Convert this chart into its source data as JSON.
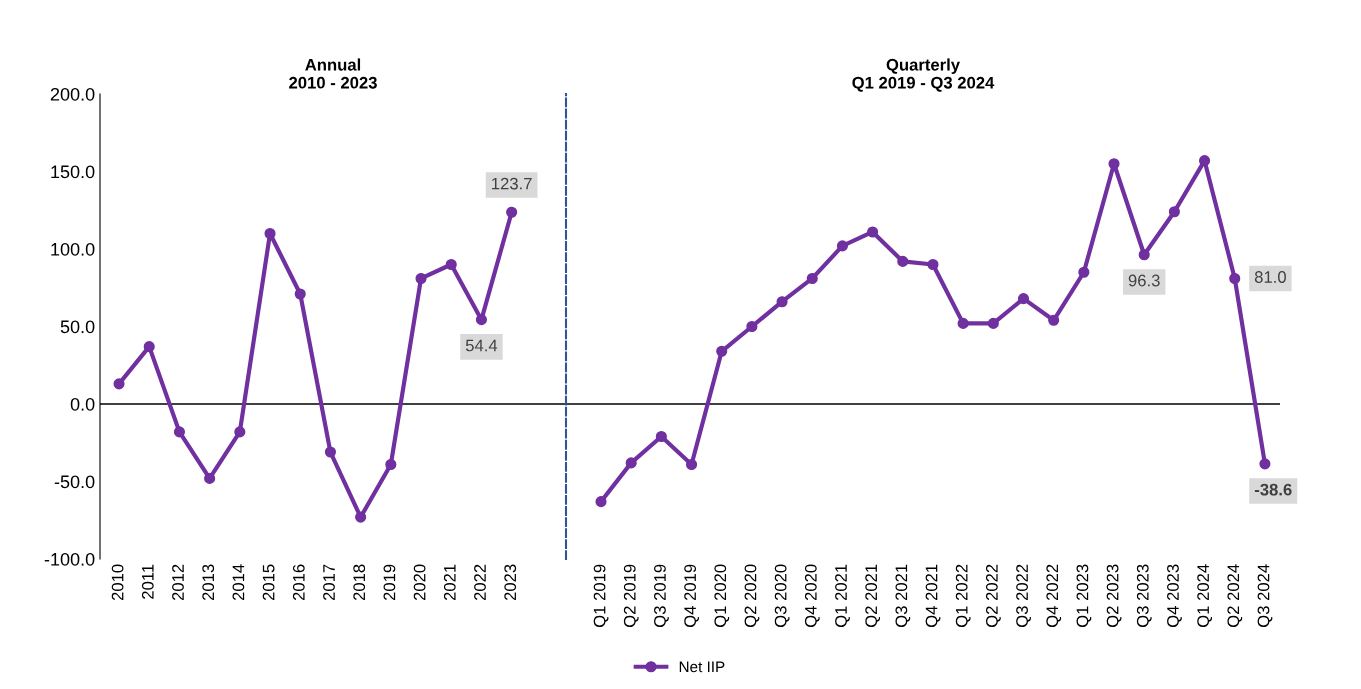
{
  "chart_data": [
    {
      "type": "line",
      "title": "Annual\n2010 - 2023",
      "categories": [
        "2010",
        "2011",
        "2012",
        "2013",
        "2014",
        "2015",
        "2016",
        "2017",
        "2018",
        "2019",
        "2020",
        "2021",
        "2022",
        "2023"
      ],
      "series": [
        {
          "name": "Net IIP",
          "color": "#7030a0",
          "values": [
            13,
            37,
            -18,
            -48,
            -18,
            110,
            71,
            -31,
            -73,
            -39,
            81,
            90,
            54.4,
            123.7
          ],
          "value_labels": [
            null,
            null,
            null,
            null,
            null,
            null,
            null,
            null,
            null,
            null,
            null,
            null,
            "54.4",
            "123.7"
          ]
        }
      ],
      "ylim": [
        -100,
        200
      ],
      "yticks": [
        {
          "value": -100,
          "label": "-100.0"
        },
        {
          "value": -50,
          "label": "-50.0"
        },
        {
          "value": 0,
          "label": "0.0"
        },
        {
          "value": 50,
          "label": "50.0"
        },
        {
          "value": 100,
          "label": "100.0"
        },
        {
          "value": 150,
          "label": "150.0"
        },
        {
          "value": 200,
          "label": "200.0"
        }
      ],
      "ref_lines": [
        {
          "axis": "y",
          "value": 0,
          "color": "#000000"
        }
      ],
      "marker": "circle",
      "grid": false,
      "legend": "bottom"
    },
    {
      "type": "line",
      "title": "Quarterly\nQ1 2019 - Q3 2024",
      "categories": [
        "Q1 2019",
        "Q2 2019",
        "Q3 2019",
        "Q4 2019",
        "Q1 2020",
        "Q2 2020",
        "Q3 2020",
        "Q4 2020",
        "Q1 2021",
        "Q2 2021",
        "Q3 2021",
        "Q4 2021",
        "Q1 2022",
        "Q2 2022",
        "Q3 2022",
        "Q4 2022",
        "Q1 2023",
        "Q2 2023",
        "Q3 2023",
        "Q4 2023",
        "Q1 2024",
        "Q2 2024",
        "Q3 2024"
      ],
      "series": [
        {
          "color": "#7030a0",
          "values": [
            -63,
            -38,
            -21,
            -39,
            34,
            50,
            66,
            81,
            102,
            111,
            92,
            90,
            52,
            52,
            68,
            54,
            85,
            155,
            96.3,
            124,
            157,
            81.0,
            -38.6
          ],
          "value_labels": [
            null,
            null,
            null,
            null,
            null,
            null,
            null,
            null,
            null,
            null,
            null,
            null,
            null,
            null,
            null,
            null,
            null,
            null,
            "96.3",
            null,
            null,
            "81.0",
            "-38.6"
          ]
        }
      ],
      "ylim": [
        -100,
        200
      ],
      "tick_labels": "x",
      "ref_lines": [
        {
          "axis": "y",
          "value": 0,
          "color": "#000000"
        }
      ],
      "marker": "circle",
      "grid": false
    }
  ]
}
